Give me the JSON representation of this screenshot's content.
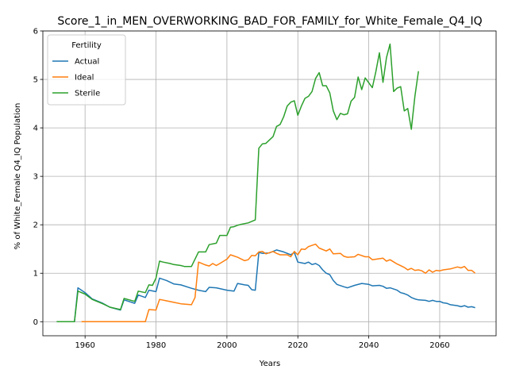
{
  "chart_data": {
    "type": "line",
    "title": "Score_1_in_MEN_OVERWORKING_BAD_FOR_FAMILY_for_White_Female_Q4_IQ",
    "xlabel": "Years",
    "ylabel": "% of White_Female Q4_IQ Population",
    "xlim": [
      1948.1,
      2075.9
    ],
    "ylim": [
      -0.29,
      6.0
    ],
    "xticks": [
      1960,
      1980,
      2000,
      2020,
      2040,
      2060
    ],
    "yticks": [
      0,
      1,
      2,
      3,
      4,
      5,
      6
    ],
    "grid": true,
    "legend": {
      "title": "Fertility",
      "placement": "upper left"
    },
    "series": [
      {
        "name": "Actual",
        "color": "#1f77b4",
        "points": [
          [
            1952,
            0.0
          ],
          [
            1957,
            0.0
          ],
          [
            1958,
            0.7
          ],
          [
            1960,
            0.6
          ],
          [
            1962,
            0.47
          ],
          [
            1965,
            0.38
          ],
          [
            1967,
            0.3
          ],
          [
            1970,
            0.24
          ],
          [
            1971,
            0.45
          ],
          [
            1974,
            0.38
          ],
          [
            1975,
            0.55
          ],
          [
            1977,
            0.5
          ],
          [
            1978,
            0.65
          ],
          [
            1980,
            0.62
          ],
          [
            1981,
            0.9
          ],
          [
            1983,
            0.85
          ],
          [
            1985,
            0.78
          ],
          [
            1987,
            0.76
          ],
          [
            1990,
            0.69
          ],
          [
            1992,
            0.65
          ],
          [
            1994,
            0.62
          ],
          [
            1995,
            0.71
          ],
          [
            1997,
            0.7
          ],
          [
            2000,
            0.65
          ],
          [
            2002,
            0.63
          ],
          [
            2003,
            0.79
          ],
          [
            2005,
            0.76
          ],
          [
            2006,
            0.75
          ],
          [
            2007,
            0.66
          ],
          [
            2008,
            0.65
          ],
          [
            2009,
            1.43
          ],
          [
            2010,
            1.41
          ],
          [
            2012,
            1.42
          ],
          [
            2014,
            1.48
          ],
          [
            2016,
            1.44
          ],
          [
            2018,
            1.38
          ],
          [
            2019,
            1.43
          ],
          [
            2020,
            1.23
          ],
          [
            2022,
            1.2
          ],
          [
            2023,
            1.23
          ],
          [
            2024,
            1.18
          ],
          [
            2025,
            1.2
          ],
          [
            2026,
            1.16
          ],
          [
            2027,
            1.07
          ],
          [
            2028,
            1.0
          ],
          [
            2029,
            0.97
          ],
          [
            2030,
            0.85
          ],
          [
            2031,
            0.77
          ],
          [
            2033,
            0.72
          ],
          [
            2034,
            0.7
          ],
          [
            2036,
            0.75
          ],
          [
            2038,
            0.79
          ],
          [
            2040,
            0.77
          ],
          [
            2041,
            0.74
          ],
          [
            2043,
            0.75
          ],
          [
            2044,
            0.73
          ],
          [
            2045,
            0.69
          ],
          [
            2046,
            0.7
          ],
          [
            2048,
            0.65
          ],
          [
            2049,
            0.6
          ],
          [
            2050,
            0.58
          ],
          [
            2051,
            0.55
          ],
          [
            2052,
            0.5
          ],
          [
            2053,
            0.47
          ],
          [
            2054,
            0.45
          ],
          [
            2056,
            0.44
          ],
          [
            2057,
            0.42
          ],
          [
            2058,
            0.44
          ],
          [
            2059,
            0.42
          ],
          [
            2060,
            0.42
          ],
          [
            2061,
            0.39
          ],
          [
            2062,
            0.38
          ],
          [
            2063,
            0.35
          ],
          [
            2065,
            0.33
          ],
          [
            2066,
            0.31
          ],
          [
            2067,
            0.33
          ],
          [
            2068,
            0.3
          ],
          [
            2069,
            0.31
          ],
          [
            2070,
            0.29
          ]
        ]
      },
      {
        "name": "Ideal",
        "color": "#ff7f0e",
        "points": [
          [
            1959,
            0.0
          ],
          [
            1977,
            0.0
          ],
          [
            1978,
            0.25
          ],
          [
            1980,
            0.24
          ],
          [
            1981,
            0.46
          ],
          [
            1983,
            0.43
          ],
          [
            1985,
            0.4
          ],
          [
            1987,
            0.37
          ],
          [
            1990,
            0.35
          ],
          [
            1991,
            0.5
          ],
          [
            1992,
            1.23
          ],
          [
            1994,
            1.17
          ],
          [
            1995,
            1.15
          ],
          [
            1996,
            1.2
          ],
          [
            1997,
            1.16
          ],
          [
            1998,
            1.2
          ],
          [
            2000,
            1.29
          ],
          [
            2001,
            1.38
          ],
          [
            2003,
            1.33
          ],
          [
            2005,
            1.26
          ],
          [
            2006,
            1.28
          ],
          [
            2007,
            1.37
          ],
          [
            2008,
            1.36
          ],
          [
            2009,
            1.44
          ],
          [
            2010,
            1.45
          ],
          [
            2011,
            1.4
          ],
          [
            2013,
            1.45
          ],
          [
            2014,
            1.41
          ],
          [
            2015,
            1.38
          ],
          [
            2017,
            1.38
          ],
          [
            2018,
            1.34
          ],
          [
            2019,
            1.45
          ],
          [
            2020,
            1.38
          ],
          [
            2021,
            1.5
          ],
          [
            2022,
            1.49
          ],
          [
            2023,
            1.55
          ],
          [
            2025,
            1.6
          ],
          [
            2026,
            1.52
          ],
          [
            2028,
            1.46
          ],
          [
            2029,
            1.5
          ],
          [
            2030,
            1.4
          ],
          [
            2032,
            1.41
          ],
          [
            2033,
            1.35
          ],
          [
            2034,
            1.33
          ],
          [
            2036,
            1.34
          ],
          [
            2037,
            1.39
          ],
          [
            2039,
            1.34
          ],
          [
            2040,
            1.34
          ],
          [
            2041,
            1.28
          ],
          [
            2044,
            1.31
          ],
          [
            2045,
            1.25
          ],
          [
            2046,
            1.28
          ],
          [
            2048,
            1.19
          ],
          [
            2050,
            1.12
          ],
          [
            2051,
            1.07
          ],
          [
            2052,
            1.1
          ],
          [
            2053,
            1.06
          ],
          [
            2054,
            1.07
          ],
          [
            2055,
            1.05
          ],
          [
            2056,
            1.0
          ],
          [
            2057,
            1.07
          ],
          [
            2058,
            1.02
          ],
          [
            2059,
            1.06
          ],
          [
            2060,
            1.05
          ],
          [
            2061,
            1.07
          ],
          [
            2063,
            1.09
          ],
          [
            2065,
            1.13
          ],
          [
            2066,
            1.11
          ],
          [
            2067,
            1.14
          ],
          [
            2068,
            1.06
          ],
          [
            2069,
            1.06
          ],
          [
            2070,
            1.0
          ]
        ]
      },
      {
        "name": "Sterile",
        "color": "#2ca02c",
        "points": [
          [
            1952,
            0.0
          ],
          [
            1957,
            0.0
          ],
          [
            1958,
            0.63
          ],
          [
            1960,
            0.57
          ],
          [
            1962,
            0.46
          ],
          [
            1965,
            0.37
          ],
          [
            1967,
            0.3
          ],
          [
            1970,
            0.25
          ],
          [
            1971,
            0.48
          ],
          [
            1974,
            0.42
          ],
          [
            1975,
            0.63
          ],
          [
            1977,
            0.6
          ],
          [
            1978,
            0.76
          ],
          [
            1979,
            0.75
          ],
          [
            1980,
            0.9
          ],
          [
            1981,
            1.25
          ],
          [
            1982,
            1.23
          ],
          [
            1984,
            1.2
          ],
          [
            1985,
            1.18
          ],
          [
            1987,
            1.16
          ],
          [
            1988,
            1.14
          ],
          [
            1990,
            1.14
          ],
          [
            1992,
            1.44
          ],
          [
            1994,
            1.44
          ],
          [
            1995,
            1.59
          ],
          [
            1997,
            1.62
          ],
          [
            1998,
            1.78
          ],
          [
            2000,
            1.78
          ],
          [
            2001,
            1.95
          ],
          [
            2002,
            1.96
          ],
          [
            2003,
            1.99
          ],
          [
            2004,
            2.01
          ],
          [
            2006,
            2.04
          ],
          [
            2008,
            2.1
          ],
          [
            2009,
            3.58
          ],
          [
            2010,
            3.67
          ],
          [
            2011,
            3.68
          ],
          [
            2013,
            3.82
          ],
          [
            2014,
            4.03
          ],
          [
            2015,
            4.07
          ],
          [
            2016,
            4.23
          ],
          [
            2017,
            4.45
          ],
          [
            2018,
            4.53
          ],
          [
            2019,
            4.56
          ],
          [
            2020,
            4.26
          ],
          [
            2021,
            4.45
          ],
          [
            2022,
            4.61
          ],
          [
            2023,
            4.65
          ],
          [
            2024,
            4.75
          ],
          [
            2025,
            5.02
          ],
          [
            2026,
            5.14
          ],
          [
            2027,
            4.87
          ],
          [
            2028,
            4.87
          ],
          [
            2029,
            4.72
          ],
          [
            2030,
            4.35
          ],
          [
            2031,
            4.17
          ],
          [
            2032,
            4.3
          ],
          [
            2033,
            4.27
          ],
          [
            2034,
            4.29
          ],
          [
            2035,
            4.55
          ],
          [
            2036,
            4.63
          ],
          [
            2037,
            5.05
          ],
          [
            2038,
            4.79
          ],
          [
            2039,
            5.03
          ],
          [
            2040,
            4.93
          ],
          [
            2041,
            4.83
          ],
          [
            2042,
            5.16
          ],
          [
            2043,
            5.55
          ],
          [
            2044,
            4.94
          ],
          [
            2045,
            5.45
          ],
          [
            2046,
            5.73
          ],
          [
            2047,
            4.75
          ],
          [
            2048,
            4.82
          ],
          [
            2049,
            4.85
          ],
          [
            2050,
            4.35
          ],
          [
            2051,
            4.4
          ],
          [
            2052,
            3.97
          ],
          [
            2053,
            4.65
          ],
          [
            2054,
            5.17
          ]
        ]
      }
    ]
  }
}
